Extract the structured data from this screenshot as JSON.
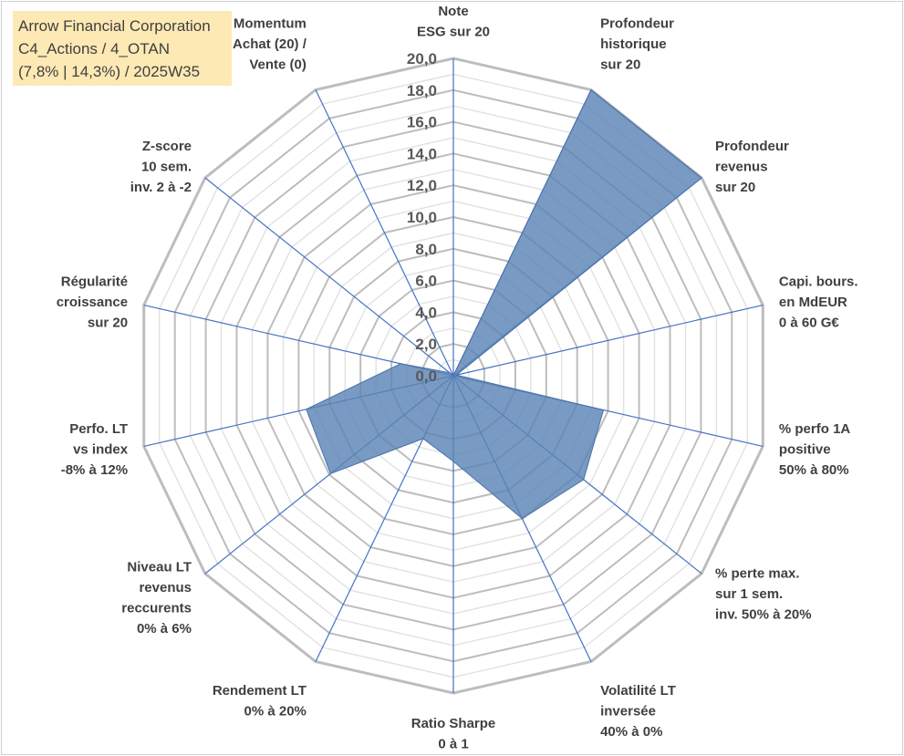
{
  "header": {
    "line1": "Arrow Financial Corporation",
    "line2": "C4_Actions / 4_OTAN",
    "line3": "(7,8% | 14,3%) / 2025W35"
  },
  "chart_data": {
    "type": "radar",
    "rlim": [
      0,
      20
    ],
    "tick_step": 2,
    "minor_step": 1,
    "tick_labels": [
      "0,0",
      "2,0",
      "4,0",
      "6,0",
      "8,0",
      "10,0",
      "12,0",
      "14,0",
      "16,0",
      "18,0",
      "20,0"
    ],
    "axes": [
      [
        "Note",
        "ESG sur 20"
      ],
      [
        "Profondeur",
        "historique",
        "sur 20"
      ],
      [
        "Profondeur",
        "revenus",
        "sur 20"
      ],
      [
        "Capi. bours.",
        "en MdEUR",
        "0 à 60 G€"
      ],
      [
        "% perfo 1A",
        "positive",
        "50% à 80%"
      ],
      [
        "% perte max.",
        "sur 1 sem.",
        "inv. 50% à 20%"
      ],
      [
        "Volatilité LT",
        "inversée",
        "40% à 0%"
      ],
      [
        "Ratio Sharpe",
        "0 à 1"
      ],
      [
        "Rendement LT",
        "0% à 20%"
      ],
      [
        "Niveau LT",
        "revenus",
        "reccurents",
        "0% à 6%"
      ],
      [
        "Perfo. LT",
        "vs index",
        "-8% à 12%"
      ],
      [
        "Régularité",
        "croissance",
        "sur 20"
      ],
      [
        "Z-score",
        "10 sem.",
        "inv. 2 à -2"
      ],
      [
        "Momentum",
        "Achat (20) /",
        "Vente (0)"
      ]
    ],
    "values": [
      0,
      20,
      20,
      0.2,
      9.7,
      10.5,
      10.0,
      5.4,
      4.4,
      9.9,
      9.5,
      3.4,
      0.3,
      0
    ],
    "grid": true,
    "legend": "none",
    "colors": {
      "fill": "#5b84b5",
      "stroke": "#4a72a8",
      "grid": "#bfbfbf",
      "spoke": "#4472c4",
      "box": "#fde9b4"
    }
  }
}
